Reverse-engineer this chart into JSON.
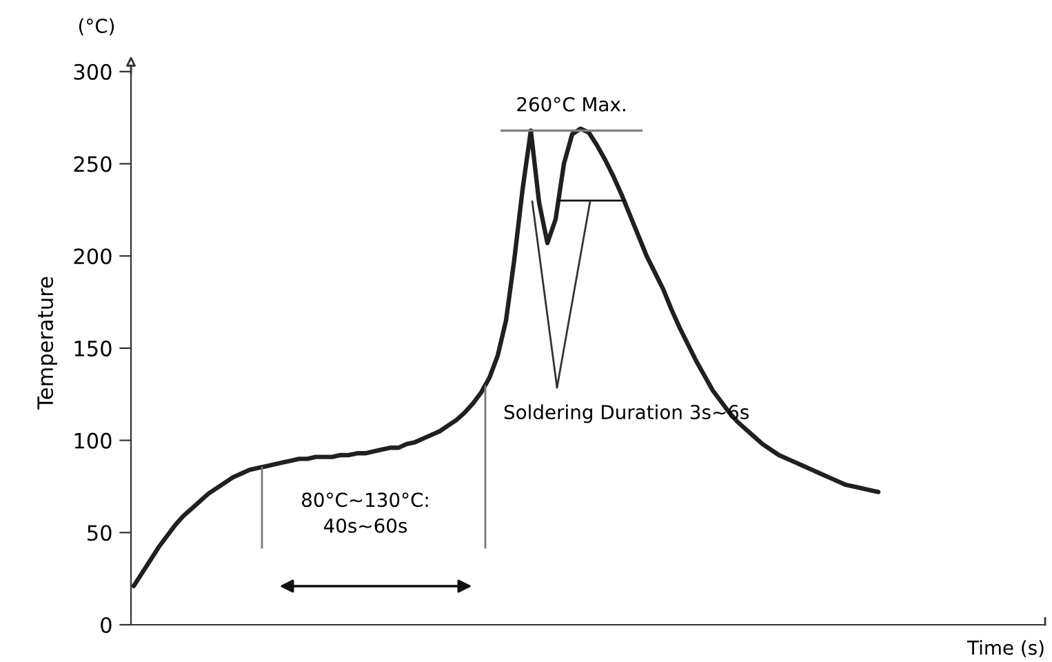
{
  "chart_data": {
    "type": "line",
    "ylabel": "Temperature",
    "xlabel": "Time (s)",
    "categories": [
      null,
      null,
      null,
      null,
      null,
      null,
      null,
      null,
      null,
      null,
      null,
      null,
      null,
      null,
      null,
      null,
      null,
      null,
      null,
      null,
      null,
      null,
      null,
      null,
      null,
      null,
      null,
      null,
      null,
      null,
      null,
      null,
      null,
      null,
      null,
      null,
      null,
      null,
      null,
      null,
      null,
      null,
      null,
      null,
      null,
      null,
      null,
      null,
      null,
      null,
      null,
      null,
      null,
      null,
      null,
      null,
      null,
      null,
      null,
      null,
      null,
      null,
      null,
      null,
      null,
      null,
      null,
      null,
      null,
      null,
      null,
      null,
      null,
      null,
      null,
      null,
      null,
      null,
      null,
      null,
      null,
      null,
      null,
      null,
      null,
      null,
      null,
      null,
      null,
      null,
      null
    ],
    "series": [
      {
        "color": "#231f20",
        "values": [
          21,
          28,
          35,
          42,
          48,
          54,
          59,
          63,
          67,
          71,
          74,
          77,
          80,
          82,
          84,
          85,
          86,
          87,
          88,
          89,
          90,
          90,
          91,
          91,
          91,
          92,
          92,
          93,
          93,
          94,
          95,
          96,
          96,
          98,
          99,
          101,
          103,
          105,
          108,
          111,
          115,
          120,
          126,
          134,
          146,
          165,
          198,
          236,
          268,
          229,
          207,
          220,
          250,
          266,
          269,
          267,
          260,
          252,
          243,
          233,
          222,
          211,
          200,
          191,
          182,
          171,
          161,
          152,
          143,
          135,
          127,
          121,
          115,
          110,
          106,
          102,
          98,
          95,
          92,
          90,
          88,
          86,
          84,
          82,
          80,
          78,
          76,
          75,
          74,
          73,
          72
        ]
      }
    ],
    "ylim": [
      0,
      306
    ],
    "yticks": [
      0,
      50,
      100,
      150,
      200,
      250,
      300
    ],
    "tick_labels": "y",
    "grid": false,
    "legend": false,
    "marker": "none",
    "line_style": "solid",
    "ref_lines": [
      {
        "axis": "y",
        "value": 268,
        "label": "260°C Max.",
        "color": "#808080"
      },
      {
        "axis": "y",
        "value": 230,
        "color": "#111111"
      }
    ],
    "annotations": [
      "(°C)",
      "80°C~130°C:\n40s~60s",
      "Soldering Duration 3s~6s"
    ]
  }
}
